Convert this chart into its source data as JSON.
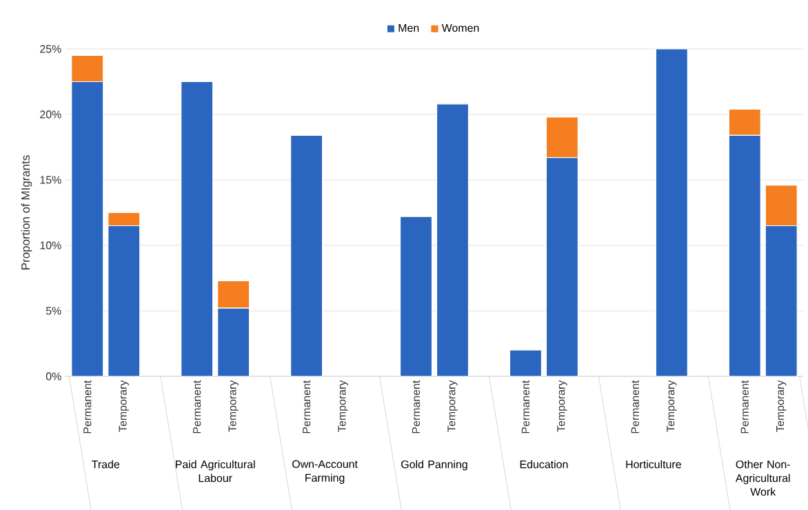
{
  "chart_data": {
    "type": "bar",
    "stacked": true,
    "ylabel": "Proportion of MIgrants",
    "categories": [
      "Permanent",
      "Temporary",
      null,
      "Permanent",
      "Temporary",
      null,
      "Permanent",
      "Temporary",
      null,
      "Permanent",
      "Temporary",
      null,
      "Permanent",
      "Temporary",
      null,
      "Permanent",
      "Temporary",
      null,
      "Permanent",
      "Temporary"
    ],
    "series": [
      {
        "name": "Men",
        "color": "#2a66c0",
        "values": [
          22.5,
          11.5,
          null,
          22.5,
          5.2,
          null,
          18.4,
          0,
          null,
          12.2,
          20.8,
          null,
          2.0,
          16.7,
          null,
          0,
          25.0,
          null,
          18.4,
          11.5
        ]
      },
      {
        "name": "Women",
        "color": "#f57f20",
        "values": [
          2.0,
          1.0,
          null,
          0,
          2.1,
          null,
          0,
          0,
          null,
          0,
          0,
          null,
          0,
          3.1,
          null,
          0,
          0,
          null,
          2.0,
          3.1
        ]
      }
    ],
    "annotations": [
      "Trade",
      "Paid Agricultural Labour",
      "Own-Account Farming",
      "Gold Panning",
      "Education",
      "Horticulture",
      "Other Non-Agricultural Work"
    ],
    "ylim": [
      0,
      25
    ],
    "yticks": [
      {
        "value": 0,
        "label": "0%"
      },
      {
        "value": 5,
        "label": "5%"
      },
      {
        "value": 10,
        "label": "10%"
      },
      {
        "value": 15,
        "label": "15%"
      },
      {
        "value": 20,
        "label": "20%"
      },
      {
        "value": 25,
        "label": "25%"
      }
    ],
    "grid": "y",
    "legend": "top"
  }
}
